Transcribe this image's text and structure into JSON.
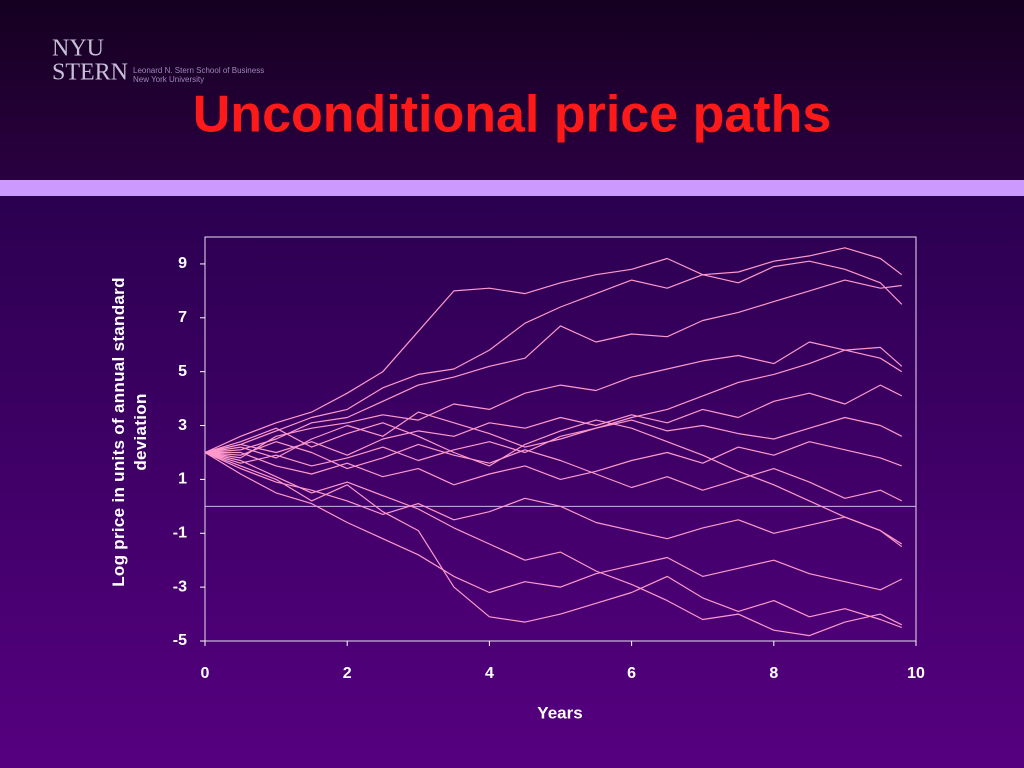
{
  "header": {
    "logo_top": "NYU",
    "logo_bottom": "STERN",
    "school": "Leonard N. Stern School of Business",
    "university": "New York University"
  },
  "chart_data": {
    "type": "line",
    "title": "Unconditional price paths",
    "xlabel": "Years",
    "ylabel": "Log price in units of annual standard deviation",
    "x": [
      0,
      0.5,
      1,
      1.5,
      2,
      2.5,
      3,
      3.5,
      4,
      4.5,
      5,
      5.5,
      6,
      6.5,
      7,
      7.5,
      8,
      8.5,
      9,
      9.5,
      9.8
    ],
    "xlim": [
      0,
      10
    ],
    "xticks": [
      0,
      2,
      4,
      6,
      8,
      10
    ],
    "ylim": [
      -5,
      10
    ],
    "yticks": [
      -5,
      -3,
      -1,
      1,
      3,
      5,
      7,
      9
    ],
    "hline": 0,
    "grid": false,
    "color": "#ff99cc",
    "series": [
      {
        "values": [
          2,
          2.6,
          3.1,
          3.5,
          4.2,
          5,
          6.5,
          8,
          8.1,
          7.9,
          8.3,
          8.6,
          8.8,
          9.2,
          8.6,
          8.7,
          9.1,
          9.3,
          9.6,
          9.2,
          8.6
        ]
      },
      {
        "values": [
          2,
          2.3,
          2.8,
          3.3,
          3.6,
          4.4,
          4.9,
          5.1,
          5.8,
          6.8,
          7.4,
          7.9,
          8.4,
          8.1,
          8.6,
          8.3,
          8.9,
          9.1,
          8.8,
          8.3,
          7.5
        ]
      },
      {
        "values": [
          2,
          2.1,
          2.5,
          3.1,
          3.3,
          3.9,
          4.5,
          4.8,
          5.2,
          5.5,
          6.7,
          6.1,
          6.4,
          6.3,
          6.9,
          7.2,
          7.6,
          8,
          8.4,
          8.1,
          8.2
        ]
      },
      {
        "values": [
          2,
          1.8,
          2.6,
          2.9,
          3.1,
          3.4,
          3.2,
          3.8,
          3.6,
          4.2,
          4.5,
          4.3,
          4.8,
          5.1,
          5.4,
          5.6,
          5.3,
          6.1,
          5.8,
          5.9,
          5.2
        ]
      },
      {
        "values": [
          2,
          2.3,
          2,
          2.4,
          1.9,
          2.5,
          2.8,
          2.6,
          3.1,
          2.9,
          3.3,
          3,
          3.4,
          3.1,
          3.6,
          3.3,
          3.9,
          4.2,
          3.8,
          4.5,
          4.1
        ]
      },
      {
        "values": [
          2,
          1.6,
          1.9,
          1.5,
          1.8,
          2.2,
          1.7,
          2.1,
          2.4,
          2,
          2.6,
          2.9,
          3.2,
          2.8,
          3,
          2.7,
          2.5,
          2.9,
          3.3,
          3,
          2.6
        ]
      },
      {
        "values": [
          2,
          2,
          1.5,
          1.2,
          1.6,
          1.1,
          1.4,
          0.8,
          1.2,
          1.5,
          1,
          1.3,
          1.7,
          2,
          1.6,
          2.2,
          1.9,
          2.4,
          2.1,
          1.8,
          1.5
        ]
      },
      {
        "values": [
          2,
          1.4,
          0.9,
          0.6,
          0.2,
          -0.3,
          0.1,
          -0.5,
          -0.2,
          0.3,
          0,
          -0.6,
          -0.9,
          -1.2,
          -0.8,
          -0.5,
          -1,
          -0.7,
          -0.4,
          -0.9,
          -1.4
        ]
      },
      {
        "values": [
          2,
          1.2,
          0.5,
          0.1,
          -0.6,
          -1.2,
          -1.8,
          -2.6,
          -3.2,
          -2.8,
          -3,
          -2.5,
          -2.2,
          -1.9,
          -2.6,
          -2.3,
          -2,
          -2.5,
          -2.8,
          -3.1,
          -2.7
        ]
      },
      {
        "values": [
          2,
          1.5,
          1,
          0.2,
          0.8,
          -0.2,
          -0.9,
          -3,
          -4.1,
          -4.3,
          -4,
          -3.6,
          -3.2,
          -2.6,
          -3.4,
          -3.9,
          -3.5,
          -4.1,
          -3.8,
          -4.2,
          -4.5
        ]
      },
      {
        "values": [
          2,
          1.7,
          1.1,
          0.5,
          0.9,
          0.4,
          -0.1,
          -0.8,
          -1.4,
          -2,
          -1.7,
          -2.4,
          -2.9,
          -3.5,
          -4.2,
          -4,
          -4.6,
          -4.8,
          -4.3,
          -4,
          -4.4
        ]
      },
      {
        "values": [
          2,
          2.4,
          2.9,
          2.2,
          2.7,
          3.1,
          2.6,
          2,
          1.5,
          2.3,
          2.8,
          3.2,
          2.9,
          2.4,
          1.9,
          1.3,
          0.8,
          0.2,
          -0.4,
          -0.9,
          -1.5
        ]
      },
      {
        "values": [
          2,
          2.2,
          1.8,
          2.5,
          3,
          2.6,
          3.5,
          3.1,
          2.7,
          2.2,
          2.5,
          2.9,
          3.3,
          3.6,
          4.1,
          4.6,
          4.9,
          5.3,
          5.8,
          5.5,
          5
        ]
      },
      {
        "values": [
          2,
          1.9,
          2.4,
          2,
          1.4,
          1.8,
          2.3,
          1.9,
          1.6,
          2.1,
          1.7,
          1.2,
          0.7,
          1.1,
          0.6,
          1,
          1.4,
          0.9,
          0.3,
          0.6,
          0.2
        ]
      }
    ]
  }
}
